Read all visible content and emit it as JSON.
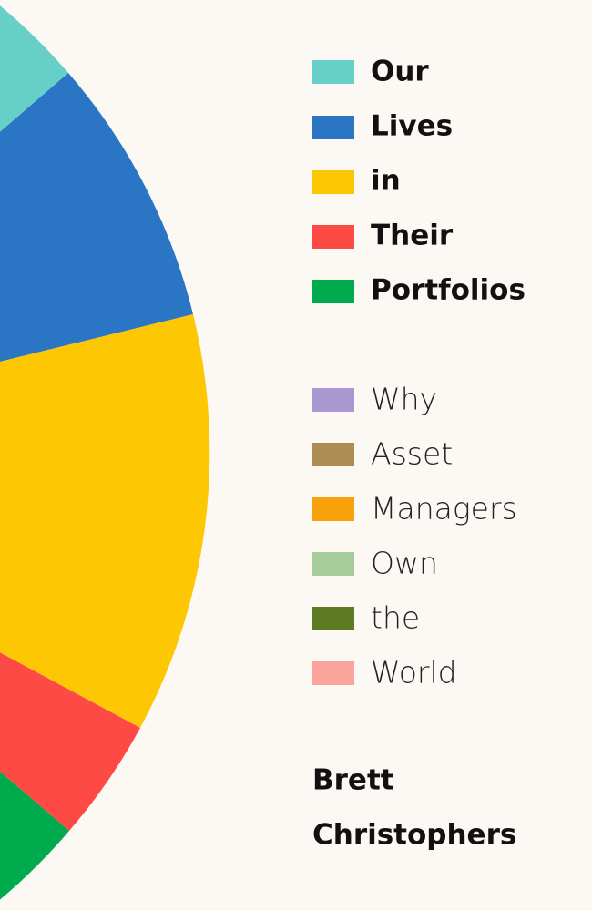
{
  "title": [
    "Our",
    "Lives",
    "in",
    "Their",
    "Portfolios"
  ],
  "subtitle": [
    "Why",
    "Asset",
    "Managers",
    "Own",
    "the",
    "World"
  ],
  "author": [
    "Brett",
    "Christophers"
  ]
}
